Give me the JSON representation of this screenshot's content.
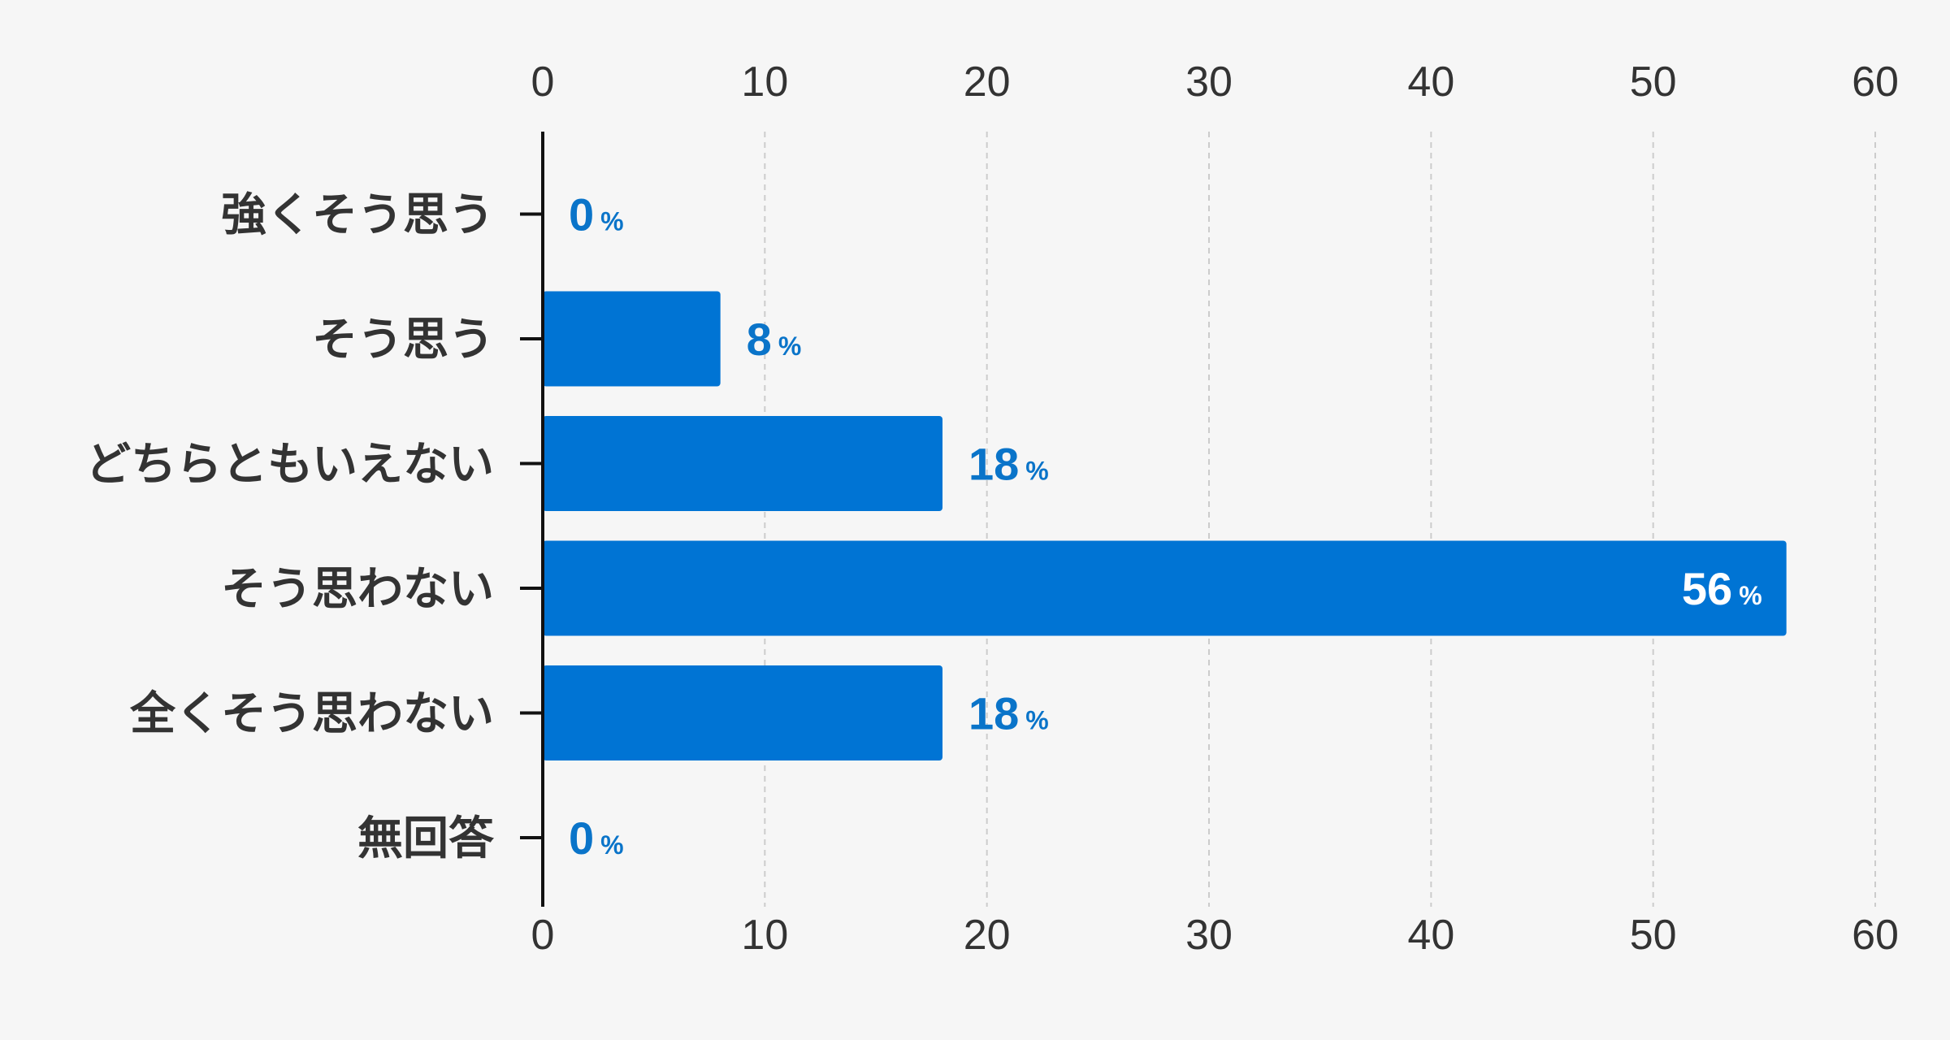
{
  "chart_data": {
    "type": "bar",
    "orientation": "horizontal",
    "categories": [
      "強くそう思う",
      "そう思う",
      "どちらともいえない",
      "そう思わない",
      "全くそう思わない",
      "無回答"
    ],
    "values": [
      0,
      8,
      18,
      56,
      18,
      0
    ],
    "value_unit": "%",
    "xlim": [
      0,
      60
    ],
    "xticks": [
      0,
      10,
      20,
      30,
      40,
      50,
      60
    ],
    "x_axis_position": "top-and-bottom",
    "grid": "vertical-dashed",
    "title": "",
    "xlabel": "",
    "ylabel": "",
    "colors": {
      "bar": "#0074d4",
      "label_outside": "#0a74c9",
      "label_inside": "#ffffff",
      "axis": "#111111",
      "grid": "#cccccc",
      "text": "#333333",
      "background": "#f6f6f6"
    }
  }
}
